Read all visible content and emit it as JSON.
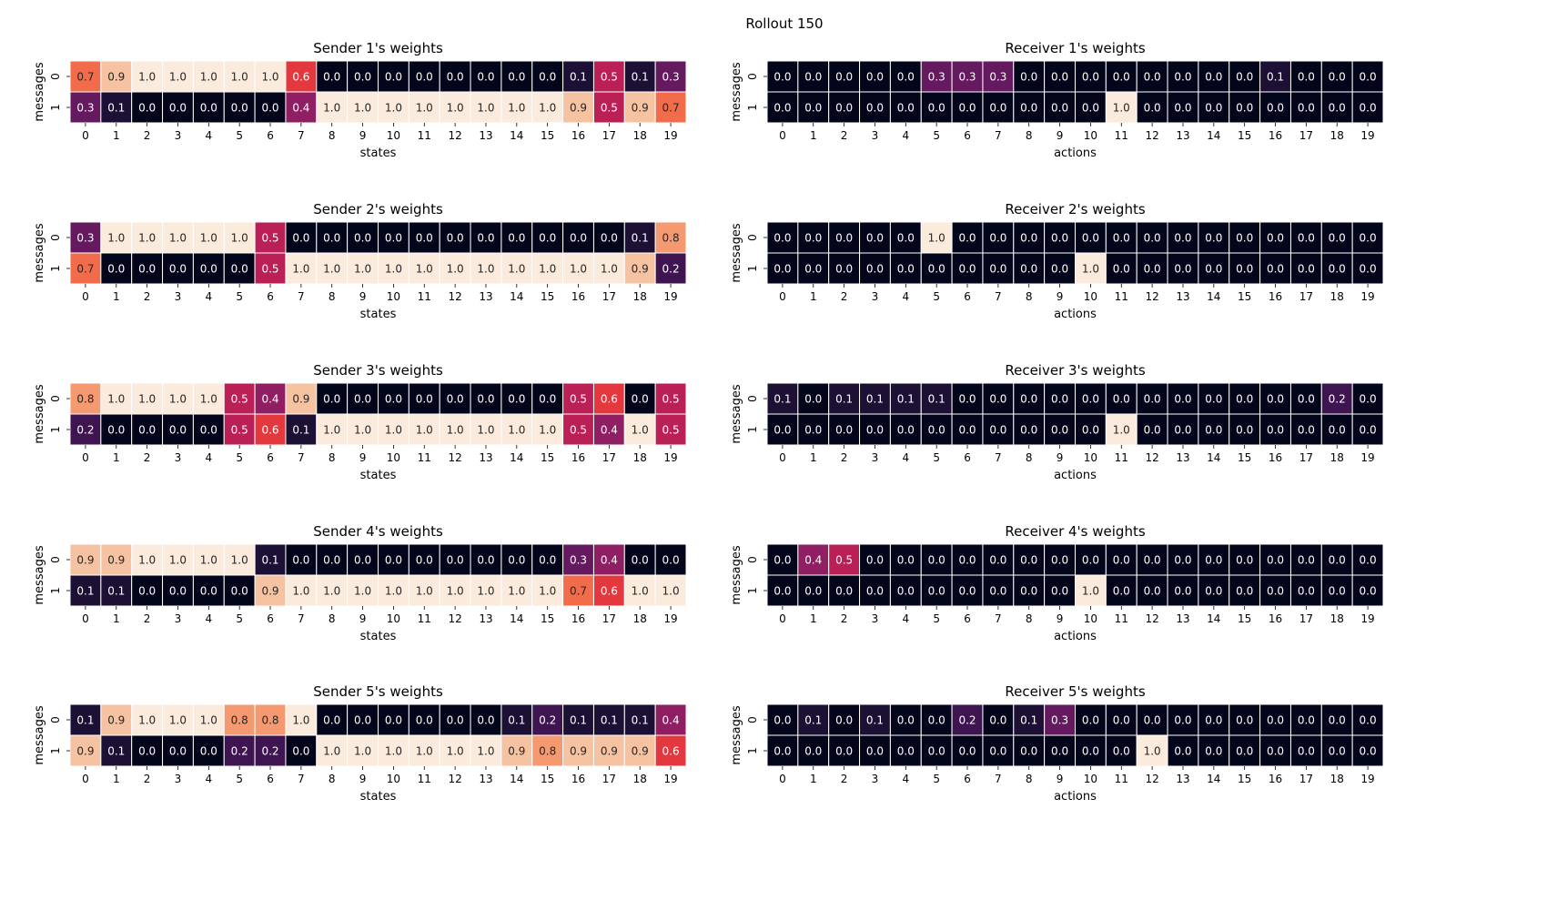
{
  "figure": {
    "title": "Rollout 150"
  },
  "chart_data": [
    {
      "type": "heatmap",
      "title": "Sender 1's weights",
      "xlabel": "states",
      "ylabel": "messages",
      "x": [
        "0",
        "1",
        "2",
        "3",
        "4",
        "5",
        "6",
        "7",
        "8",
        "9",
        "10",
        "11",
        "12",
        "13",
        "14",
        "15",
        "16",
        "17",
        "18",
        "19"
      ],
      "y": [
        "0",
        "1"
      ],
      "vmin": 0,
      "vmax": 1,
      "values": [
        [
          0.7,
          0.9,
          1.0,
          1.0,
          1.0,
          1.0,
          1.0,
          0.6,
          0.0,
          0.0,
          0.0,
          0.0,
          0.0,
          0.0,
          0.0,
          0.0,
          0.1,
          0.5,
          0.1,
          0.3
        ],
        [
          0.3,
          0.1,
          0.0,
          0.0,
          0.0,
          0.0,
          0.0,
          0.4,
          1.0,
          1.0,
          1.0,
          1.0,
          1.0,
          1.0,
          1.0,
          1.0,
          0.9,
          0.5,
          0.9,
          0.7
        ]
      ]
    },
    {
      "type": "heatmap",
      "title": "Receiver 1's weights",
      "xlabel": "actions",
      "ylabel": "messages",
      "x": [
        "0",
        "1",
        "2",
        "3",
        "4",
        "5",
        "6",
        "7",
        "8",
        "9",
        "10",
        "11",
        "12",
        "13",
        "14",
        "15",
        "16",
        "17",
        "18",
        "19"
      ],
      "y": [
        "0",
        "1"
      ],
      "vmin": 0,
      "vmax": 1,
      "values": [
        [
          0.0,
          0.0,
          0.0,
          0.0,
          0.0,
          0.3,
          0.3,
          0.3,
          0.0,
          0.0,
          0.0,
          0.0,
          0.0,
          0.0,
          0.0,
          0.0,
          0.1,
          0.0,
          0.0,
          0.0
        ],
        [
          0.0,
          0.0,
          0.0,
          0.0,
          0.0,
          0.0,
          0.0,
          0.0,
          0.0,
          0.0,
          0.0,
          1.0,
          0.0,
          0.0,
          0.0,
          0.0,
          0.0,
          0.0,
          0.0,
          0.0
        ]
      ]
    },
    {
      "type": "heatmap",
      "title": "Sender 2's weights",
      "xlabel": "states",
      "ylabel": "messages",
      "x": [
        "0",
        "1",
        "2",
        "3",
        "4",
        "5",
        "6",
        "7",
        "8",
        "9",
        "10",
        "11",
        "12",
        "13",
        "14",
        "15",
        "16",
        "17",
        "18",
        "19"
      ],
      "y": [
        "0",
        "1"
      ],
      "vmin": 0,
      "vmax": 1,
      "values": [
        [
          0.3,
          1.0,
          1.0,
          1.0,
          1.0,
          1.0,
          0.5,
          0.0,
          0.0,
          0.0,
          0.0,
          0.0,
          0.0,
          0.0,
          0.0,
          0.0,
          0.0,
          0.0,
          0.1,
          0.8
        ],
        [
          0.7,
          0.0,
          0.0,
          0.0,
          0.0,
          0.0,
          0.5,
          1.0,
          1.0,
          1.0,
          1.0,
          1.0,
          1.0,
          1.0,
          1.0,
          1.0,
          1.0,
          1.0,
          0.9,
          0.2
        ]
      ]
    },
    {
      "type": "heatmap",
      "title": "Receiver 2's weights",
      "xlabel": "actions",
      "ylabel": "messages",
      "x": [
        "0",
        "1",
        "2",
        "3",
        "4",
        "5",
        "6",
        "7",
        "8",
        "9",
        "10",
        "11",
        "12",
        "13",
        "14",
        "15",
        "16",
        "17",
        "18",
        "19"
      ],
      "y": [
        "0",
        "1"
      ],
      "vmin": 0,
      "vmax": 1,
      "values": [
        [
          0.0,
          0.0,
          0.0,
          0.0,
          0.0,
          1.0,
          0.0,
          0.0,
          0.0,
          0.0,
          0.0,
          0.0,
          0.0,
          0.0,
          0.0,
          0.0,
          0.0,
          0.0,
          0.0,
          0.0
        ],
        [
          0.0,
          0.0,
          0.0,
          0.0,
          0.0,
          0.0,
          0.0,
          0.0,
          0.0,
          0.0,
          1.0,
          0.0,
          0.0,
          0.0,
          0.0,
          0.0,
          0.0,
          0.0,
          0.0,
          0.0
        ]
      ]
    },
    {
      "type": "heatmap",
      "title": "Sender 3's weights",
      "xlabel": "states",
      "ylabel": "messages",
      "x": [
        "0",
        "1",
        "2",
        "3",
        "4",
        "5",
        "6",
        "7",
        "8",
        "9",
        "10",
        "11",
        "12",
        "13",
        "14",
        "15",
        "16",
        "17",
        "18",
        "19"
      ],
      "y": [
        "0",
        "1"
      ],
      "vmin": 0,
      "vmax": 1,
      "values": [
        [
          0.8,
          1.0,
          1.0,
          1.0,
          1.0,
          0.5,
          0.4,
          0.9,
          0.0,
          0.0,
          0.0,
          0.0,
          0.0,
          0.0,
          0.0,
          0.0,
          0.5,
          0.6,
          0.0,
          0.5
        ],
        [
          0.2,
          0.0,
          0.0,
          0.0,
          0.0,
          0.5,
          0.6,
          0.1,
          1.0,
          1.0,
          1.0,
          1.0,
          1.0,
          1.0,
          1.0,
          1.0,
          0.5,
          0.4,
          1.0,
          0.5
        ]
      ]
    },
    {
      "type": "heatmap",
      "title": "Receiver 3's weights",
      "xlabel": "actions",
      "ylabel": "messages",
      "x": [
        "0",
        "1",
        "2",
        "3",
        "4",
        "5",
        "6",
        "7",
        "8",
        "9",
        "10",
        "11",
        "12",
        "13",
        "14",
        "15",
        "16",
        "17",
        "18",
        "19"
      ],
      "y": [
        "0",
        "1"
      ],
      "vmin": 0,
      "vmax": 1,
      "values": [
        [
          0.1,
          0.0,
          0.1,
          0.1,
          0.1,
          0.1,
          0.0,
          0.0,
          0.0,
          0.0,
          0.0,
          0.0,
          0.0,
          0.0,
          0.0,
          0.0,
          0.0,
          0.0,
          0.2,
          0.0
        ],
        [
          0.0,
          0.0,
          0.0,
          0.0,
          0.0,
          0.0,
          0.0,
          0.0,
          0.0,
          0.0,
          0.0,
          1.0,
          0.0,
          0.0,
          0.0,
          0.0,
          0.0,
          0.0,
          0.0,
          0.0
        ]
      ]
    },
    {
      "type": "heatmap",
      "title": "Sender 4's weights",
      "xlabel": "states",
      "ylabel": "messages",
      "x": [
        "0",
        "1",
        "2",
        "3",
        "4",
        "5",
        "6",
        "7",
        "8",
        "9",
        "10",
        "11",
        "12",
        "13",
        "14",
        "15",
        "16",
        "17",
        "18",
        "19"
      ],
      "y": [
        "0",
        "1"
      ],
      "vmin": 0,
      "vmax": 1,
      "values": [
        [
          0.9,
          0.9,
          1.0,
          1.0,
          1.0,
          1.0,
          0.1,
          0.0,
          0.0,
          0.0,
          0.0,
          0.0,
          0.0,
          0.0,
          0.0,
          0.0,
          0.3,
          0.4,
          0.0,
          0.0
        ],
        [
          0.1,
          0.1,
          0.0,
          0.0,
          0.0,
          0.0,
          0.9,
          1.0,
          1.0,
          1.0,
          1.0,
          1.0,
          1.0,
          1.0,
          1.0,
          1.0,
          0.7,
          0.6,
          1.0,
          1.0
        ]
      ]
    },
    {
      "type": "heatmap",
      "title": "Receiver 4's weights",
      "xlabel": "actions",
      "ylabel": "messages",
      "x": [
        "0",
        "1",
        "2",
        "3",
        "4",
        "5",
        "6",
        "7",
        "8",
        "9",
        "10",
        "11",
        "12",
        "13",
        "14",
        "15",
        "16",
        "17",
        "18",
        "19"
      ],
      "y": [
        "0",
        "1"
      ],
      "vmin": 0,
      "vmax": 1,
      "values": [
        [
          0.0,
          0.4,
          0.5,
          0.0,
          0.0,
          0.0,
          0.0,
          0.0,
          0.0,
          0.0,
          0.0,
          0.0,
          0.0,
          0.0,
          0.0,
          0.0,
          0.0,
          0.0,
          0.0,
          0.0
        ],
        [
          0.0,
          0.0,
          0.0,
          0.0,
          0.0,
          0.0,
          0.0,
          0.0,
          0.0,
          0.0,
          1.0,
          0.0,
          0.0,
          0.0,
          0.0,
          0.0,
          0.0,
          0.0,
          0.0,
          0.0
        ]
      ]
    },
    {
      "type": "heatmap",
      "title": "Sender 5's weights",
      "xlabel": "states",
      "ylabel": "messages",
      "x": [
        "0",
        "1",
        "2",
        "3",
        "4",
        "5",
        "6",
        "7",
        "8",
        "9",
        "10",
        "11",
        "12",
        "13",
        "14",
        "15",
        "16",
        "17",
        "18",
        "19"
      ],
      "y": [
        "0",
        "1"
      ],
      "vmin": 0,
      "vmax": 1,
      "values": [
        [
          0.1,
          0.9,
          1.0,
          1.0,
          1.0,
          0.8,
          0.8,
          1.0,
          0.0,
          0.0,
          0.0,
          0.0,
          0.0,
          0.0,
          0.1,
          0.2,
          0.1,
          0.1,
          0.1,
          0.4
        ],
        [
          0.9,
          0.1,
          0.0,
          0.0,
          0.0,
          0.2,
          0.2,
          0.0,
          1.0,
          1.0,
          1.0,
          1.0,
          1.0,
          1.0,
          0.9,
          0.8,
          0.9,
          0.9,
          0.9,
          0.6
        ]
      ]
    },
    {
      "type": "heatmap",
      "title": "Receiver 5's weights",
      "xlabel": "actions",
      "ylabel": "messages",
      "x": [
        "0",
        "1",
        "2",
        "3",
        "4",
        "5",
        "6",
        "7",
        "8",
        "9",
        "10",
        "11",
        "12",
        "13",
        "14",
        "15",
        "16",
        "17",
        "18",
        "19"
      ],
      "y": [
        "0",
        "1"
      ],
      "vmin": 0,
      "vmax": 1,
      "values": [
        [
          0.0,
          0.1,
          0.0,
          0.1,
          0.0,
          0.0,
          0.2,
          0.0,
          0.1,
          0.3,
          0.0,
          0.0,
          0.0,
          0.0,
          0.0,
          0.0,
          0.0,
          0.0,
          0.0,
          0.0
        ],
        [
          0.0,
          0.0,
          0.0,
          0.0,
          0.0,
          0.0,
          0.0,
          0.0,
          0.0,
          0.0,
          0.0,
          0.0,
          1.0,
          0.0,
          0.0,
          0.0,
          0.0,
          0.0,
          0.0,
          0.0
        ]
      ]
    }
  ]
}
